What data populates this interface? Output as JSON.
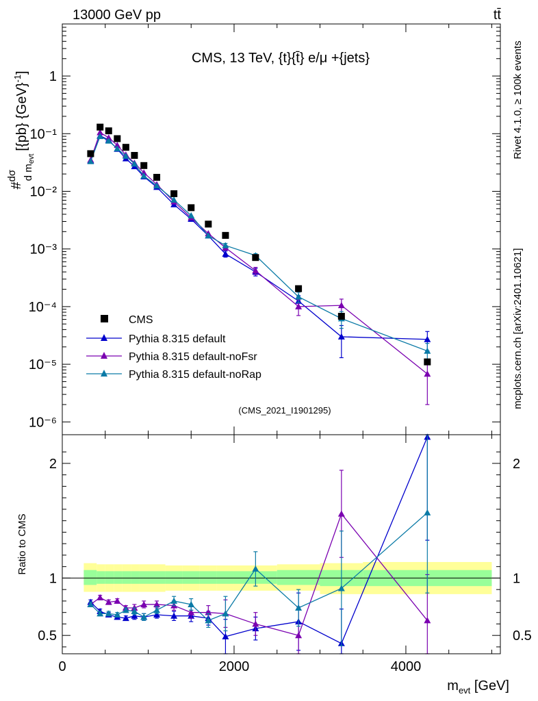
{
  "header": {
    "left": "13000 GeV pp",
    "right": "tt̄",
    "analysis_title": "CMS, 13 TeV, {t}{t̄} e/μ +{jets}",
    "analysis_id": "(CMS_2021_I1901295)",
    "side_rivet": "Rivet 4.1.0, ≥ 100k events",
    "side_mcplots": "mcplots.cern.ch [arXiv:2401.10621]"
  },
  "colors": {
    "data": "#000000",
    "default": "#0000cc",
    "noFsr": "#7a00b0",
    "noRap": "#0a7aa6",
    "band_outer": "#ffff99",
    "band_inner": "#99ff99"
  },
  "chart_data": [
    {
      "type": "line",
      "panel": "main",
      "title": "CMS, 13 TeV, {t}{t̄} e/μ +{jets}",
      "xlabel": "m_evt [GeV]",
      "ylabel": "#dσ/d m_evt [{pb} {GeV}^-1]",
      "yscale": "log",
      "xlim": [
        0,
        5100
      ],
      "ylim": [
        6e-07,
        8
      ],
      "yticks": [
        {
          "value": 1e-06,
          "label": "10⁻⁶"
        },
        {
          "value": 1e-05,
          "label": "10⁻⁵"
        },
        {
          "value": 0.0001,
          "label": "10⁻⁴"
        },
        {
          "value": 0.001,
          "label": "10⁻³"
        },
        {
          "value": 0.01,
          "label": "10⁻²"
        },
        {
          "value": 0.1,
          "label": "10⁻¹"
        },
        {
          "value": 1,
          "label": "1"
        }
      ],
      "legend_position": "bottom-left",
      "x": [
        330,
        440,
        540,
        640,
        740,
        840,
        950,
        1100,
        1300,
        1500,
        1700,
        1900,
        2250,
        2750,
        3250,
        4250
      ],
      "data": {
        "name": "CMS",
        "values": [
          0.045,
          0.13,
          0.112,
          0.082,
          0.058,
          0.042,
          0.028,
          0.0175,
          0.0091,
          0.0052,
          0.0027,
          0.00172,
          0.00071,
          0.000205,
          6.8e-05,
          1.1e-05
        ]
      },
      "series": [
        {
          "name": "Pythia 8.315 default",
          "color": "#0000cc",
          "values": [
            0.034,
            0.092,
            0.078,
            0.054,
            0.037,
            0.027,
            0.018,
            0.0118,
            0.0059,
            0.0033,
            0.0017,
            0.00082,
            0.0004,
            0.000125,
            3e-05,
            2.7e-05
          ],
          "err_lo": [
            0,
            0,
            0,
            0,
            0,
            0,
            0,
            0,
            0,
            0,
            0,
            0.0001,
            6e-05,
            3e-05,
            1.7e-05,
            1e-05
          ],
          "err_hi": [
            0,
            0,
            0,
            0,
            0,
            0,
            0,
            0,
            0,
            0,
            0,
            0.0001,
            6e-05,
            3e-05,
            1.7e-05,
            1e-05
          ]
        },
        {
          "name": "Pythia 8.315 default-noFsr",
          "color": "#7a00b0",
          "values": [
            0.035,
            0.105,
            0.085,
            0.063,
            0.043,
            0.031,
            0.021,
            0.0132,
            0.0066,
            0.0035,
            0.00185,
            0.00105,
            0.00042,
            0.0001,
            0.000105,
            6.8e-06
          ],
          "err_lo": [
            0,
            0,
            0,
            0,
            0,
            0,
            0,
            0,
            0,
            0,
            0,
            0.0001,
            6e-05,
            3e-05,
            3e-05,
            4.8e-06
          ],
          "err_hi": [
            0,
            0,
            0,
            0,
            0,
            0,
            0,
            0,
            0,
            0,
            0,
            0.0001,
            6e-05,
            3e-05,
            3e-05,
            4.8e-06
          ]
        },
        {
          "name": "Pythia 8.315 default-noRap",
          "color": "#0a7aa6",
          "values": [
            0.033,
            0.09,
            0.075,
            0.055,
            0.041,
            0.03,
            0.0185,
            0.0125,
            0.0071,
            0.0038,
            0.0017,
            0.00115,
            0.00077,
            0.000148,
            6.2e-05,
            1.7e-05
          ],
          "err_lo": [
            0,
            0,
            0,
            0,
            0,
            0,
            0,
            0,
            0,
            0,
            0,
            0.0001,
            6e-05,
            3e-05,
            2e-05,
            6e-06
          ],
          "err_hi": [
            0,
            0,
            0,
            0,
            0,
            0,
            0,
            0,
            0,
            0,
            0,
            0.0001,
            6e-05,
            3e-05,
            2e-05,
            6e-06
          ]
        }
      ]
    },
    {
      "type": "line",
      "panel": "ratio",
      "xlabel": "m_evt [GeV]",
      "ylabel": "Ratio to CMS",
      "xlim": [
        0,
        5100
      ],
      "ylim": [
        0.34,
        2.25
      ],
      "xticks": [
        0,
        2000,
        4000
      ],
      "xtick_labels": [
        "0",
        "2000",
        "4000"
      ],
      "yticks": [
        0.5,
        1,
        2
      ],
      "ytick_labels": [
        "0.5",
        "1",
        "2"
      ],
      "reference_line": 1,
      "x": [
        330,
        440,
        540,
        640,
        740,
        840,
        950,
        1100,
        1300,
        1500,
        1700,
        1900,
        2250,
        2750,
        3250,
        4250
      ],
      "band_edges": [
        250,
        400,
        500,
        600,
        700,
        800,
        900,
        1000,
        1200,
        1400,
        1600,
        1800,
        2000,
        2500,
        3000,
        3500,
        5000
      ],
      "band_outer_lo": [
        0.88,
        0.88,
        0.88,
        0.88,
        0.88,
        0.88,
        0.88,
        0.88,
        0.89,
        0.89,
        0.89,
        0.89,
        0.89,
        0.89,
        0.86,
        0.86
      ],
      "band_outer_hi": [
        1.13,
        1.12,
        1.12,
        1.12,
        1.12,
        1.12,
        1.12,
        1.12,
        1.11,
        1.11,
        1.11,
        1.11,
        1.11,
        1.12,
        1.13,
        1.14
      ],
      "band_inner_lo": [
        0.94,
        0.95,
        0.95,
        0.95,
        0.95,
        0.95,
        0.95,
        0.95,
        0.95,
        0.95,
        0.95,
        0.95,
        0.95,
        0.94,
        0.93,
        0.93
      ],
      "band_inner_hi": [
        1.07,
        1.06,
        1.06,
        1.06,
        1.06,
        1.06,
        1.06,
        1.06,
        1.06,
        1.06,
        1.06,
        1.06,
        1.06,
        1.07,
        1.07,
        1.07
      ],
      "series": [
        {
          "name": "Pythia 8.315 default",
          "color": "#0000cc",
          "values": [
            0.79,
            0.71,
            0.68,
            0.66,
            0.65,
            0.67,
            0.66,
            0.68,
            0.67,
            0.67,
            0.65,
            0.49,
            0.56,
            0.62,
            0.43,
            2.23
          ],
          "err_lo": [
            0.02,
            0.02,
            0.02,
            0.02,
            0.02,
            0.03,
            0.03,
            0.03,
            0.04,
            0.05,
            0.06,
            0.15,
            0.1,
            0.25,
            0.3,
            0.9
          ],
          "err_hi": [
            0.02,
            0.02,
            0.02,
            0.02,
            0.02,
            0.03,
            0.03,
            0.03,
            0.04,
            0.05,
            0.06,
            0.15,
            0.1,
            0.25,
            0.3,
            0.9
          ]
        },
        {
          "name": "Pythia 8.315 default-noFsr",
          "color": "#7a00b0",
          "values": [
            0.77,
            0.83,
            0.79,
            0.8,
            0.74,
            0.74,
            0.77,
            0.77,
            0.76,
            0.7,
            0.7,
            0.69,
            0.6,
            0.5,
            1.56,
            0.63
          ],
          "err_lo": [
            0.02,
            0.02,
            0.02,
            0.02,
            0.02,
            0.03,
            0.03,
            0.03,
            0.04,
            0.05,
            0.06,
            0.12,
            0.1,
            0.25,
            0.38,
            0.4
          ],
          "err_hi": [
            0.02,
            0.02,
            0.02,
            0.02,
            0.02,
            0.03,
            0.03,
            0.03,
            0.04,
            0.05,
            0.06,
            0.12,
            0.1,
            0.25,
            0.38,
            0.4
          ]
        },
        {
          "name": "Pythia 8.315 default-noRap",
          "color": "#0a7aa6",
          "values": [
            0.77,
            0.69,
            0.69,
            0.68,
            0.72,
            0.71,
            0.66,
            0.72,
            0.8,
            0.77,
            0.63,
            0.69,
            1.08,
            0.74,
            0.91,
            1.57
          ],
          "err_lo": [
            0.02,
            0.02,
            0.02,
            0.02,
            0.02,
            0.03,
            0.03,
            0.03,
            0.04,
            0.05,
            0.06,
            0.15,
            0.15,
            0.16,
            0.5,
            0.7
          ],
          "err_hi": [
            0.02,
            0.02,
            0.02,
            0.02,
            0.02,
            0.03,
            0.03,
            0.03,
            0.04,
            0.05,
            0.06,
            0.15,
            0.15,
            0.16,
            0.5,
            0.7
          ]
        }
      ]
    }
  ],
  "legend": {
    "data_label": "CMS",
    "items": [
      "Pythia 8.315 default",
      "Pythia 8.315 default-noFsr",
      "Pythia 8.315 default-noRap"
    ]
  }
}
